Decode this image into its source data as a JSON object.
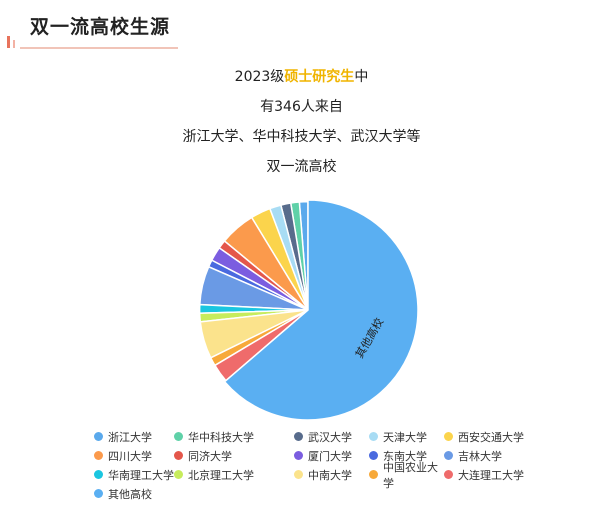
{
  "header": {
    "title": "双一流高校生源"
  },
  "intro": {
    "line1_prefix": "2023级",
    "line1_highlight": "硕士研究生",
    "line1_suffix": "中",
    "line2": "有346人来自",
    "line3": "浙江大学、华中科技大学、武汉大学等",
    "line4": "双一流高校"
  },
  "chart_data": {
    "type": "pie",
    "title": "",
    "slice_label": "其他高校",
    "legend_position": "bottom",
    "slices": [
      {
        "name": "浙江大学",
        "value": 6,
        "color": "#5aa9ec"
      },
      {
        "name": "华中科技大学",
        "value": 6,
        "color": "#5fd1a8"
      },
      {
        "name": "武汉大学",
        "value": 7,
        "color": "#586c8c"
      },
      {
        "name": "天津大学",
        "value": 8,
        "color": "#a8dcf4"
      },
      {
        "name": "西安交通大学",
        "value": 14,
        "color": "#fbd44c"
      },
      {
        "name": "四川大学",
        "value": 25,
        "color": "#fb9a4c"
      },
      {
        "name": "同济大学",
        "value": 6,
        "color": "#e4574b"
      },
      {
        "name": "厦门大学",
        "value": 10,
        "color": "#7b5de0"
      },
      {
        "name": "东南大学",
        "value": 5,
        "color": "#4a6adf"
      },
      {
        "name": "吉林大学",
        "value": 27,
        "color": "#6a9ae5"
      },
      {
        "name": "华南理工大学",
        "value": 6,
        "color": "#1bc6e0"
      },
      {
        "name": "北京理工大学",
        "value": 6,
        "color": "#c7ec5c"
      },
      {
        "name": "中南大学",
        "value": 26,
        "color": "#fbe38c"
      },
      {
        "name": "中国农业大学",
        "value": 6,
        "color": "#f7a93a"
      },
      {
        "name": "大连理工大学",
        "value": 13,
        "color": "#ef6b6b"
      },
      {
        "name": "其他高校",
        "value": 300,
        "color": "#5aaff2"
      }
    ]
  }
}
